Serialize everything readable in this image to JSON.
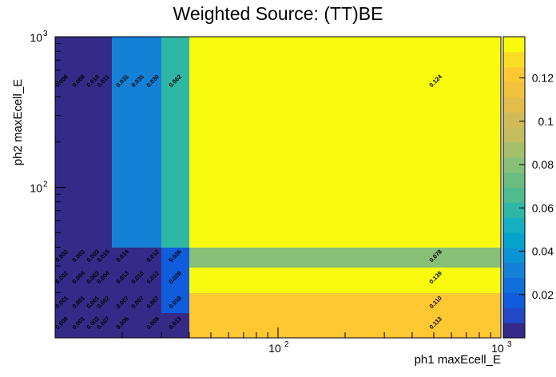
{
  "chart_data": {
    "type": "heatmap",
    "title": "Weighted Source: (TT)BE",
    "xlabel": "ph1 maxEcell_E",
    "ylabel": "ph2 maxEcell_E",
    "x_scale": "log",
    "y_scale": "log",
    "xlim": [
      10,
      1000
    ],
    "ylim": [
      10,
      1000
    ],
    "x_tick_labels": [
      {
        "base": "10",
        "exp": "2"
      },
      {
        "base": "10",
        "exp": "3"
      }
    ],
    "y_tick_labels": [
      {
        "base": "10",
        "exp": "2"
      },
      {
        "base": "10",
        "exp": "3"
      }
    ],
    "x_bin_edges": [
      10,
      15,
      20,
      25,
      30,
      40,
      1000
    ],
    "y_bin_edges": [
      10,
      15,
      20,
      25,
      30,
      40,
      1000
    ],
    "z_range": [
      0,
      0.139
    ],
    "colorbar_ticks": [
      "0.02",
      "0.04",
      "0.06",
      "0.08",
      "0.1",
      "0.12"
    ],
    "colorbar_tick_values": [
      0.02,
      0.04,
      0.06,
      0.08,
      0.1,
      0.12
    ],
    "values": [
      [
        0.0,
        0.001,
        0.002,
        0.007,
        0.006,
        0.005,
        0.013,
        0.113
      ],
      [
        0.001,
        0.001,
        0.001,
        0.002,
        0.007,
        0.007,
        0.007,
        0.018,
        0.11
      ],
      [
        0.002,
        0.004,
        0.003,
        0.004,
        0.013,
        0.016,
        0.012,
        0.028,
        0.139
      ],
      [
        0.002,
        0.003,
        0.003,
        0.015,
        0.014,
        0.012,
        0.026,
        0.078
      ],
      [
        0.006,
        0.008,
        0.01,
        0.011,
        0.031,
        0.031,
        0.03,
        0.062,
        0.124
      ]
    ],
    "row_columns": [
      [
        0,
        1,
        2,
        3,
        4,
        5,
        6,
        7
      ],
      [
        0,
        1,
        2,
        3,
        4,
        5,
        6,
        7,
        8
      ],
      [
        0,
        1,
        2,
        3,
        4,
        5,
        6,
        7,
        8
      ],
      [
        0,
        1,
        2,
        3,
        4,
        5,
        6,
        7
      ],
      [
        0,
        1,
        2,
        3,
        4,
        5,
        6,
        7,
        8
      ]
    ],
    "value_labels": [
      [
        "0.000",
        "0.001",
        "0.002",
        "0.007",
        "0.006",
        "0.005",
        "0.013",
        "0.113"
      ],
      [
        "0.001",
        "0.001",
        "0.001",
        "0.002",
        "0.007",
        "0.007",
        "0.007",
        "0.018",
        "0.110"
      ],
      [
        "0.002",
        "0.004",
        "0.003",
        "0.004",
        "0.013",
        "0.016",
        "0.012",
        "0.028",
        "0.139"
      ],
      [
        "0.002",
        "0.003",
        "0.003",
        "0.015",
        "0.014",
        "0.012",
        "0.026",
        "0.078"
      ],
      [
        "0.006",
        "0.008",
        "0.010",
        "0.011",
        "0.031",
        "0.031",
        "0.030",
        "0.062",
        "0.124"
      ]
    ],
    "palette": [
      "#352a87",
      "#0f5cdd",
      "#1481d6",
      "#06a4ca",
      "#2eb7a4",
      "#87bf77",
      "#d1bb59",
      "#fec832",
      "#f9fb0e"
    ]
  }
}
